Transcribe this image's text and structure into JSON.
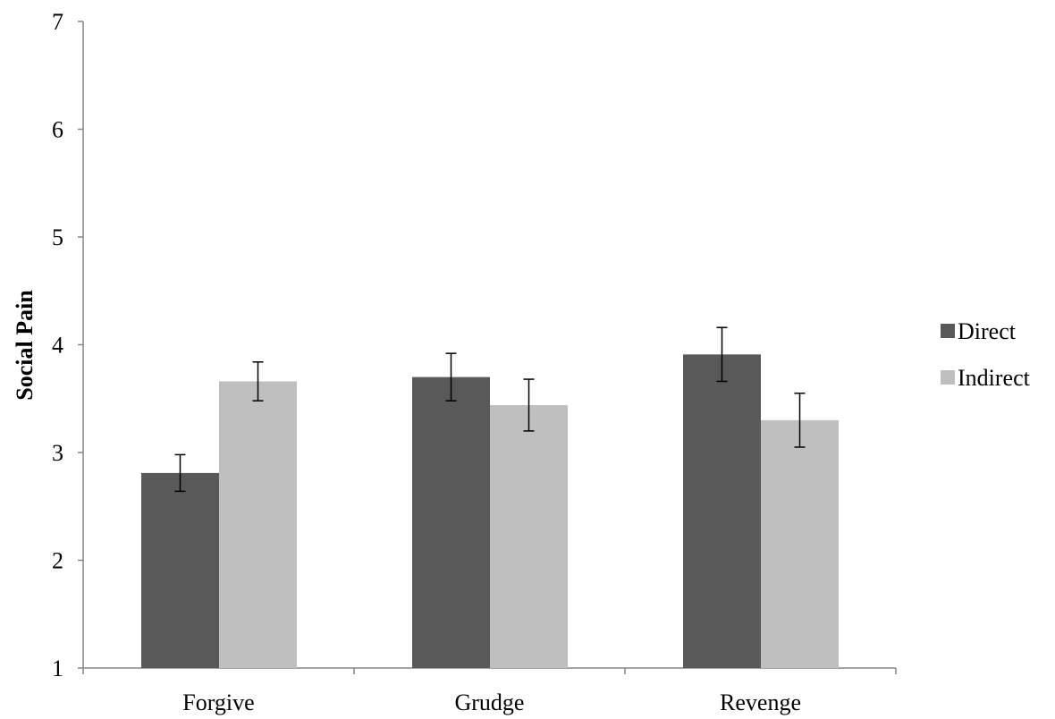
{
  "chart_data": {
    "type": "bar",
    "title": "",
    "xlabel": "",
    "ylabel": "Social Pain",
    "ylim": [
      1,
      7
    ],
    "yticks": [
      1,
      2,
      3,
      4,
      5,
      6,
      7
    ],
    "grid": false,
    "legend_position": "right",
    "categories": [
      "Forgive",
      "Grudge",
      "Revenge"
    ],
    "series": [
      {
        "name": "Direct",
        "color": "#595959",
        "values": [
          2.81,
          3.7,
          3.91
        ],
        "error": [
          0.17,
          0.22,
          0.25
        ]
      },
      {
        "name": "Indirect",
        "color": "#bfbfbf",
        "values": [
          3.66,
          3.44,
          3.3
        ],
        "error": [
          0.18,
          0.24,
          0.25
        ]
      }
    ]
  }
}
